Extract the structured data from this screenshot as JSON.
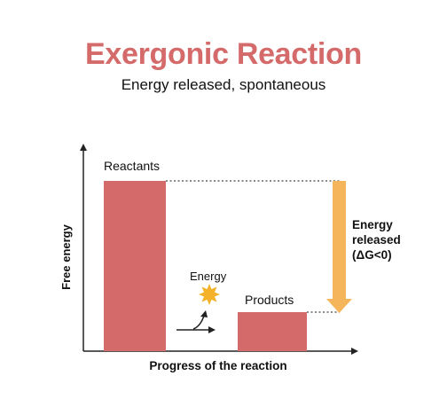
{
  "header": {
    "title": "Exergonic Reaction",
    "subtitle": "Energy released, spontaneous"
  },
  "diagram": {
    "y_axis_label": "Free energy",
    "x_axis_label": "Progress of the reaction",
    "reactants_label": "Reactants",
    "products_label": "Products",
    "energy_label": "Energy",
    "released_line1": "Energy",
    "released_line2": "released",
    "released_line3": "(ΔG<0)"
  },
  "colors": {
    "bar": "#d46a6a",
    "arrow": "#f4b55b",
    "burst": "#f4b22b",
    "title": "#d46a6a"
  }
}
